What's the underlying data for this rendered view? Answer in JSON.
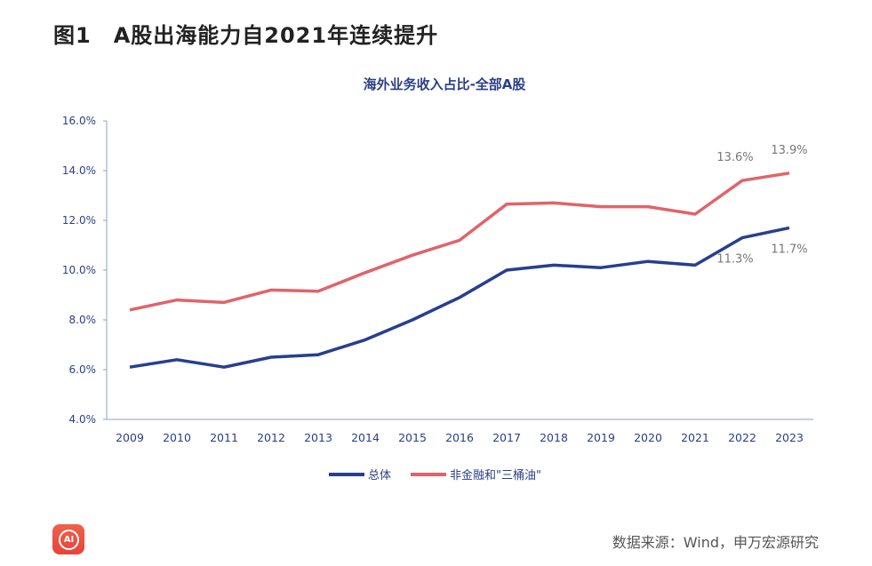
{
  "figure_title": "图1　A股出海能力自2021年连续提升",
  "source": "数据来源：Wind，申万宏源研究",
  "logo_text": "AI",
  "chart_data": {
    "type": "line",
    "title": "海外业务收入占比-全部A股",
    "xlabel": "",
    "ylabel": "",
    "categories": [
      "2009",
      "2010",
      "2011",
      "2012",
      "2013",
      "2014",
      "2015",
      "2016",
      "2017",
      "2018",
      "2019",
      "2020",
      "2021",
      "2022",
      "2023"
    ],
    "ylim": [
      4.0,
      16.0
    ],
    "yticks": [
      "4.0%",
      "6.0%",
      "8.0%",
      "10.0%",
      "12.0%",
      "14.0%",
      "16.0%"
    ],
    "grid": false,
    "legend": "bottom",
    "series": [
      {
        "name": "总体",
        "color": "#263f8f",
        "values": [
          6.1,
          6.4,
          6.1,
          6.5,
          6.6,
          7.2,
          8.0,
          8.9,
          10.0,
          10.2,
          10.1,
          10.35,
          10.2,
          11.3,
          11.7
        ],
        "labels": {
          "13": "11.3%",
          "14": "11.7%"
        }
      },
      {
        "name": "非金融和\"三桶油\"",
        "color": "#e0646a",
        "values": [
          8.4,
          8.8,
          8.7,
          9.2,
          9.15,
          9.9,
          10.6,
          11.2,
          12.65,
          12.7,
          12.55,
          12.55,
          12.25,
          13.6,
          13.9
        ],
        "labels": {
          "13": "13.6%",
          "14": "13.9%"
        }
      }
    ]
  }
}
